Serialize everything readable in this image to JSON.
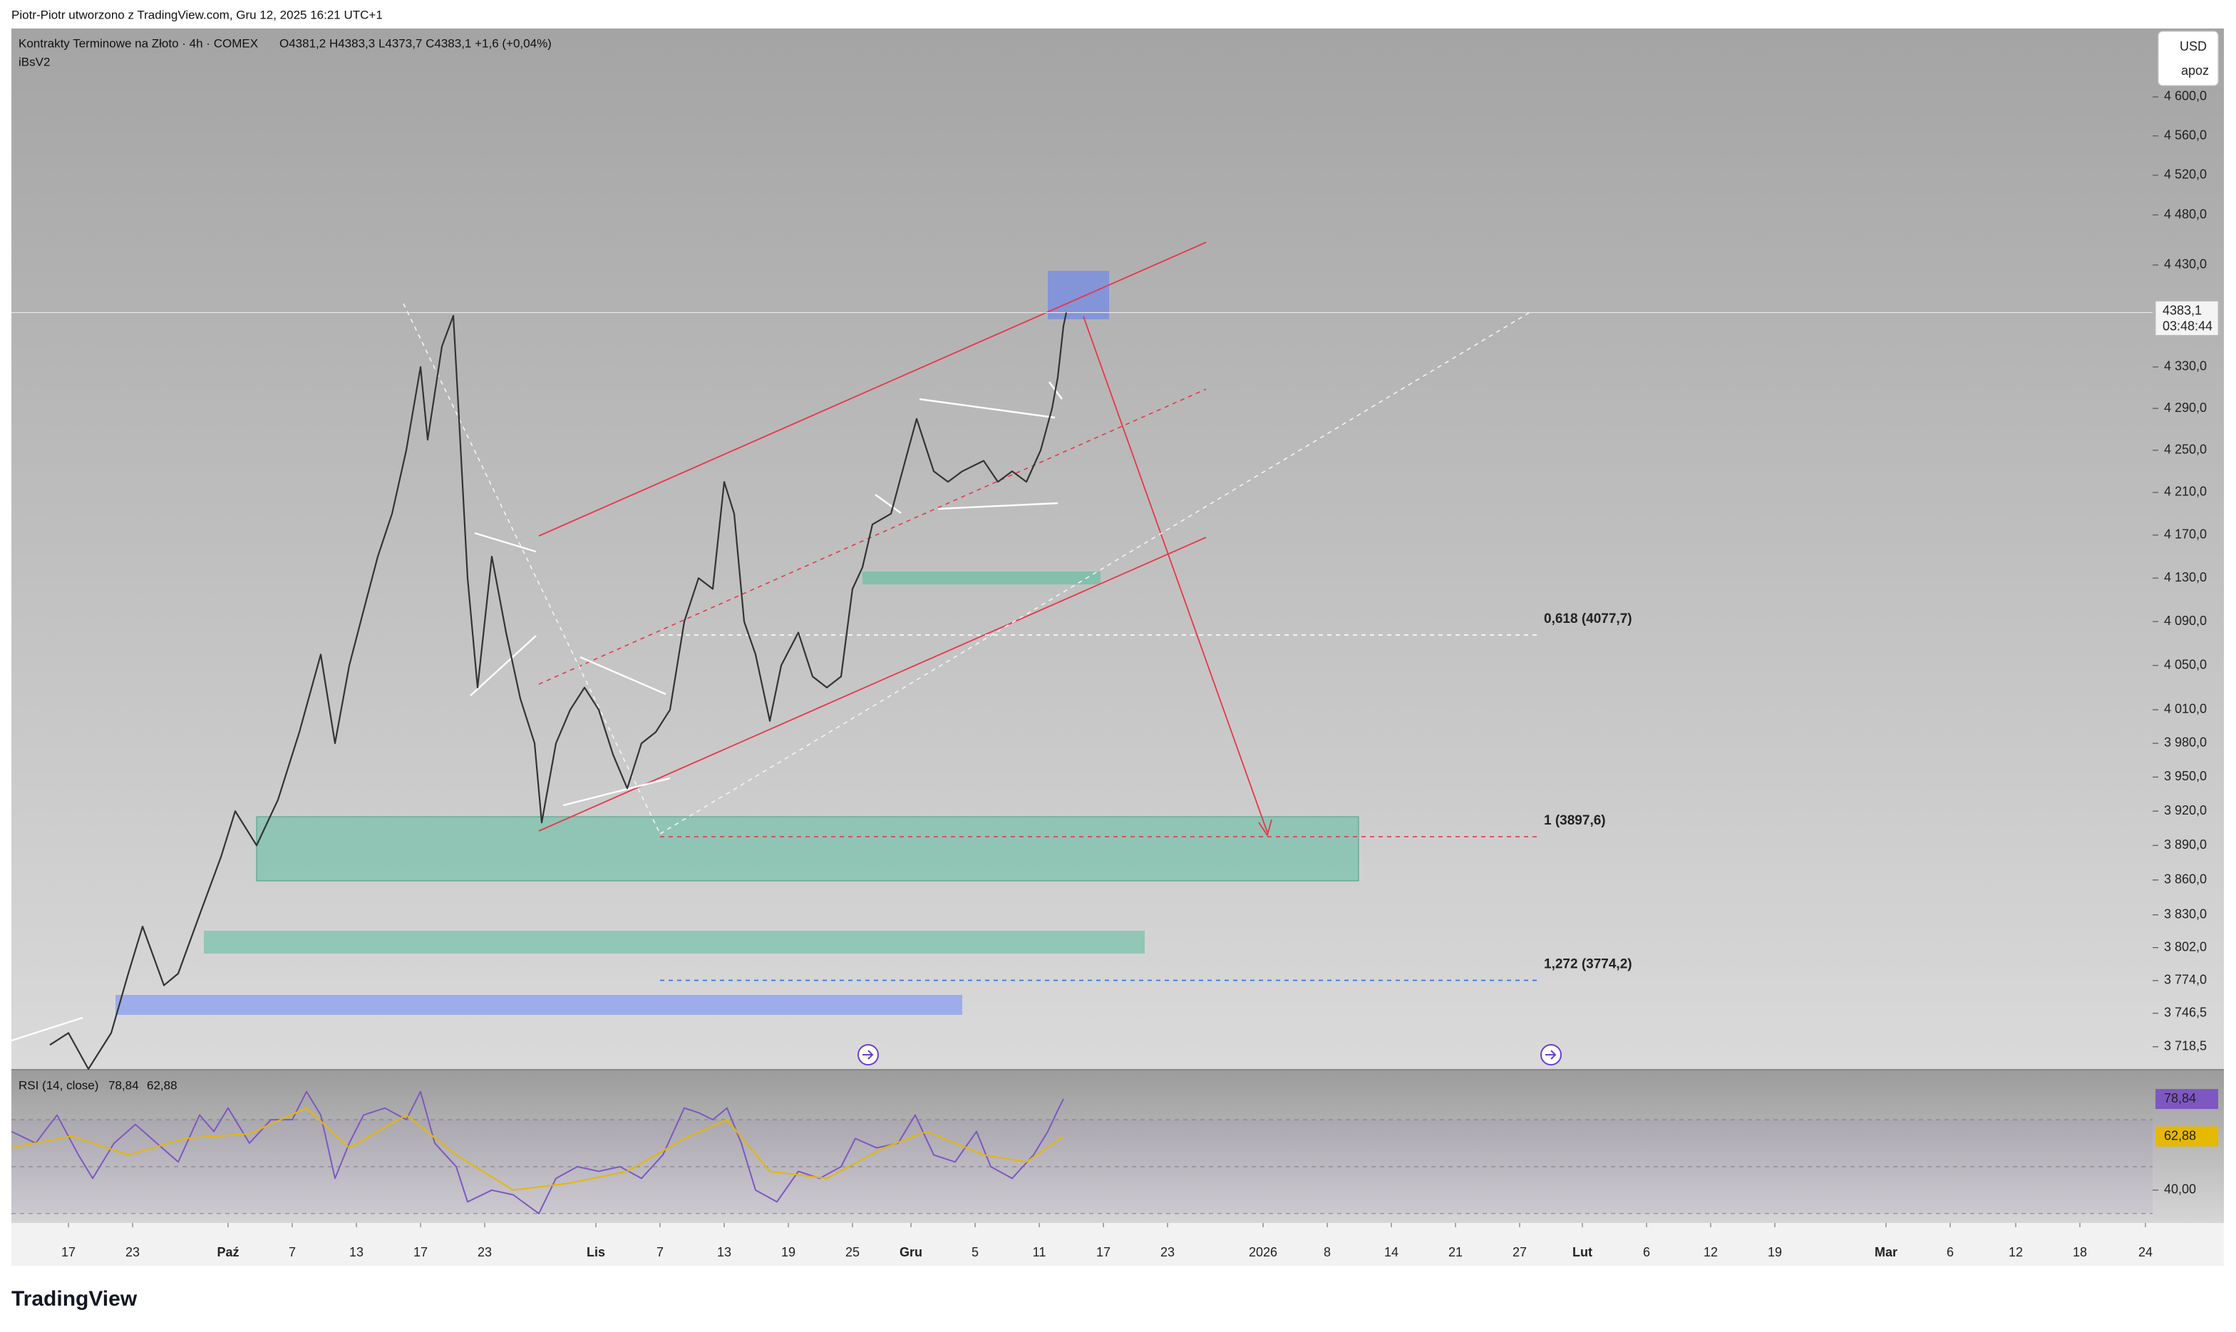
{
  "header": {
    "byline": "Piotr-Piotr utworzono z TradingView.com, Gru 12, 2025 16:21 UTC+1",
    "logo": "TradingView"
  },
  "chart_data": [
    {
      "type": "line",
      "title": "Kontrakty Terminowe na Złoto · 4h · COMEX",
      "ohlc": "O4381,2  H4383,3  L4373,7  C4383,1  +1,6 (+0,04%)",
      "indicator": "iBsV2",
      "currency": "USD",
      "currency_note": "apoz",
      "countdown": "03:48:44",
      "last_price": {
        "value": 4383.1,
        "label": "4383,1"
      },
      "log_scale": true,
      "color": "#333333",
      "x": [
        35,
        48,
        62,
        78,
        90,
        100,
        115,
        125,
        140,
        155,
        165,
        180,
        195,
        210,
        225,
        235,
        245,
        255,
        265,
        275,
        285,
        295,
        300,
        310,
        318,
        322,
        328,
        335,
        345,
        355,
        365,
        375,
        380,
        390,
        400,
        410,
        420,
        430,
        440,
        450,
        460,
        470,
        480,
        490,
        500,
        508,
        515,
        522,
        530,
        540,
        548,
        560,
        570,
        580,
        590,
        598,
        605,
        612,
        625,
        635,
        643,
        655,
        665,
        675,
        690,
        700,
        710,
        720,
        730,
        738,
        742,
        746,
        748
      ],
      "values": [
        3720,
        3730,
        3700,
        3730,
        3780,
        3820,
        3770,
        3780,
        3830,
        3880,
        3920,
        3890,
        3930,
        3990,
        4060,
        3980,
        4050,
        4100,
        4150,
        4190,
        4250,
        4330,
        4260,
        4350,
        4380,
        4280,
        4130,
        4030,
        4150,
        4080,
        4020,
        3980,
        3910,
        3980,
        4010,
        4030,
        4010,
        3970,
        3940,
        3980,
        3990,
        4010,
        4090,
        4130,
        4120,
        4220,
        4190,
        4090,
        4060,
        4000,
        4050,
        4080,
        4040,
        4030,
        4040,
        4120,
        4140,
        4180,
        4190,
        4240,
        4280,
        4230,
        4220,
        4230,
        4240,
        4220,
        4230,
        4220,
        4250,
        4290,
        4320,
        4370,
        4383.1
      ],
      "xlim": [
        8,
        1510
      ],
      "xticks": [
        {
          "value": 48,
          "label": "17"
        },
        {
          "value": 93,
          "label": "23"
        },
        {
          "value": 160,
          "label": "Paź"
        },
        {
          "value": 205,
          "label": "7"
        },
        {
          "value": 250,
          "label": "13"
        },
        {
          "value": 295,
          "label": "17"
        },
        {
          "value": 340,
          "label": "23"
        },
        {
          "value": 418,
          "label": "Lis"
        },
        {
          "value": 463,
          "label": "7"
        },
        {
          "value": 508,
          "label": "13"
        },
        {
          "value": 553,
          "label": "19"
        },
        {
          "value": 598,
          "label": "25"
        },
        {
          "value": 639,
          "label": "Gru"
        },
        {
          "value": 684,
          "label": "5"
        },
        {
          "value": 729,
          "label": "11"
        },
        {
          "value": 774,
          "label": "17"
        },
        {
          "value": 819,
          "label": "23"
        },
        {
          "value": 886,
          "label": "2026"
        },
        {
          "value": 931,
          "label": "8"
        },
        {
          "value": 976,
          "label": "14"
        },
        {
          "value": 1021,
          "label": "21"
        },
        {
          "value": 1066,
          "label": "27"
        },
        {
          "value": 1110,
          "label": "Lut"
        },
        {
          "value": 1155,
          "label": "6"
        },
        {
          "value": 1200,
          "label": "12"
        },
        {
          "value": 1245,
          "label": "19"
        },
        {
          "value": 1323,
          "label": "Mar"
        },
        {
          "value": 1368,
          "label": "6"
        },
        {
          "value": 1414,
          "label": "12"
        },
        {
          "value": 1459,
          "label": "18"
        },
        {
          "value": 1505,
          "label": "24"
        }
      ],
      "ylim": [
        3700,
        4668
      ],
      "yticks": [
        {
          "value": 4600,
          "label": "4 600,0"
        },
        {
          "value": 4560,
          "label": "4 560,0"
        },
        {
          "value": 4520,
          "label": "4 520,0"
        },
        {
          "value": 4480,
          "label": "4 480,0"
        },
        {
          "value": 4430,
          "label": "4 430,0"
        },
        {
          "value": 4330,
          "label": "4 330,0"
        },
        {
          "value": 4290,
          "label": "4 290,0"
        },
        {
          "value": 4250,
          "label": "4 250,0"
        },
        {
          "value": 4210,
          "label": "4 210,0"
        },
        {
          "value": 4170,
          "label": "4 170,0"
        },
        {
          "value": 4130,
          "label": "4 130,0"
        },
        {
          "value": 4090,
          "label": "4 090,0"
        },
        {
          "value": 4050,
          "label": "4 050,0"
        },
        {
          "value": 4010,
          "label": "4 010,0"
        },
        {
          "value": 3980,
          "label": "3 980,0"
        },
        {
          "value": 3950,
          "label": "3 950,0"
        },
        {
          "value": 3920,
          "label": "3 920,0"
        },
        {
          "value": 3890,
          "label": "3 890,0"
        },
        {
          "value": 3860,
          "label": "3 860,0"
        },
        {
          "value": 3830,
          "label": "3 830,0"
        },
        {
          "value": 3802,
          "label": "3 802,0"
        },
        {
          "value": 3774,
          "label": "3 774,0"
        },
        {
          "value": 3746.5,
          "label": "3 746,5"
        },
        {
          "value": 3718.5,
          "label": "3 718,5"
        }
      ],
      "annotations": [
        {
          "value": 4077.7,
          "label": "0,618 (4077,7)",
          "color": "#ffffff"
        },
        {
          "value": 3897.6,
          "label": "1 (3897,6)",
          "color": "#e8364a"
        },
        {
          "value": 3774.2,
          "label": "1,272 (3774,2)",
          "color": "#2f6fe0"
        }
      ]
    },
    {
      "type": "line",
      "title": "RSI (14, close)",
      "ylim": [
        26,
        90.4
      ],
      "yticks": [
        {
          "value": 40,
          "label": "40,00"
        }
      ],
      "levels": [
        70,
        50,
        30
      ],
      "series": [
        {
          "color": "#7e57c2",
          "value_label": "78,84",
          "x": [
            8,
            25,
            40,
            55,
            65,
            80,
            95,
            110,
            125,
            140,
            150,
            160,
            175,
            190,
            205,
            215,
            225,
            235,
            245,
            255,
            270,
            285,
            295,
            305,
            320,
            328,
            345,
            360,
            378,
            390,
            405,
            420,
            435,
            450,
            465,
            480,
            490,
            500,
            510,
            520,
            530,
            545,
            560,
            575,
            590,
            600,
            615,
            630,
            642,
            655,
            670,
            685,
            695,
            710,
            725,
            735,
            742,
            746
          ],
          "values": [
            65,
            60,
            72,
            55,
            45,
            60,
            68,
            60,
            52,
            72,
            65,
            75,
            60,
            70,
            70,
            82,
            72,
            45,
            60,
            72,
            75,
            70,
            82,
            60,
            50,
            35,
            40,
            38,
            30,
            45,
            50,
            48,
            50,
            45,
            55,
            75,
            73,
            70,
            75,
            60,
            40,
            35,
            48,
            45,
            50,
            62,
            58,
            60,
            72,
            55,
            52,
            65,
            50,
            45,
            55,
            65,
            74,
            78.84
          ]
        },
        {
          "color": "#e6b800",
          "value_label": "62,88",
          "x": [
            8,
            50,
            90,
            130,
            175,
            215,
            245,
            285,
            320,
            360,
            400,
            440,
            480,
            510,
            540,
            580,
            620,
            650,
            690,
            720,
            746
          ],
          "values": [
            58,
            63,
            55,
            62,
            64,
            75,
            58,
            72,
            55,
            40,
            43,
            48,
            62,
            70,
            48,
            45,
            58,
            65,
            55,
            52,
            62.88
          ]
        }
      ]
    }
  ]
}
